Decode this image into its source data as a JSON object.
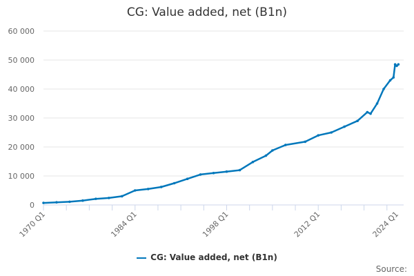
{
  "chart_data": {
    "type": "line",
    "title": "CG: Value added, net (B1n)",
    "xlabel": "",
    "ylabel": "",
    "ylim": [
      0,
      60000
    ],
    "yticks": [
      0,
      10000,
      20000,
      30000,
      40000,
      50000,
      60000
    ],
    "ytick_labels": [
      "0",
      "10 000",
      "20 000",
      "30 000",
      "40 000",
      "50 000",
      "60 000"
    ],
    "xtick_labels": [
      "1970 Q1",
      "1984 Q1",
      "1998 Q1",
      "2012 Q1",
      "2024 Q1"
    ],
    "grid": "horizontal",
    "legend": "bottom",
    "color": "#0077bb",
    "series": [
      {
        "name": "CG: Value added, net (B1n)",
        "x": [
          "1970 Q1",
          "1972 Q1",
          "1974 Q1",
          "1976 Q1",
          "1978 Q1",
          "1980 Q1",
          "1982 Q1",
          "1984 Q1",
          "1986 Q1",
          "1988 Q1",
          "1990 Q1",
          "1992 Q1",
          "1994 Q1",
          "1996 Q1",
          "1998 Q1",
          "2000 Q1",
          "2002 Q1",
          "2004 Q1",
          "2005 Q1",
          "2007 Q1",
          "2010 Q1",
          "2012 Q1",
          "2014 Q1",
          "2016 Q1",
          "2018 Q1",
          "2019 Q3",
          "2020 Q1",
          "2021 Q1",
          "2022 Q1",
          "2023 Q1",
          "2023 Q3",
          "2023 Q4",
          "2024 Q1",
          "2024 Q2"
        ],
        "values": [
          700,
          900,
          1100,
          1500,
          2100,
          2400,
          3000,
          5000,
          5500,
          6200,
          7500,
          9000,
          10500,
          11000,
          11500,
          12000,
          14800,
          17000,
          18800,
          20700,
          21800,
          24000,
          25000,
          27000,
          29000,
          32000,
          31500,
          35000,
          40000,
          43000,
          44000,
          48500,
          48000,
          48500
        ]
      }
    ]
  },
  "legend_label": "CG: Value added, net (B1n)",
  "source_label": "Source:"
}
